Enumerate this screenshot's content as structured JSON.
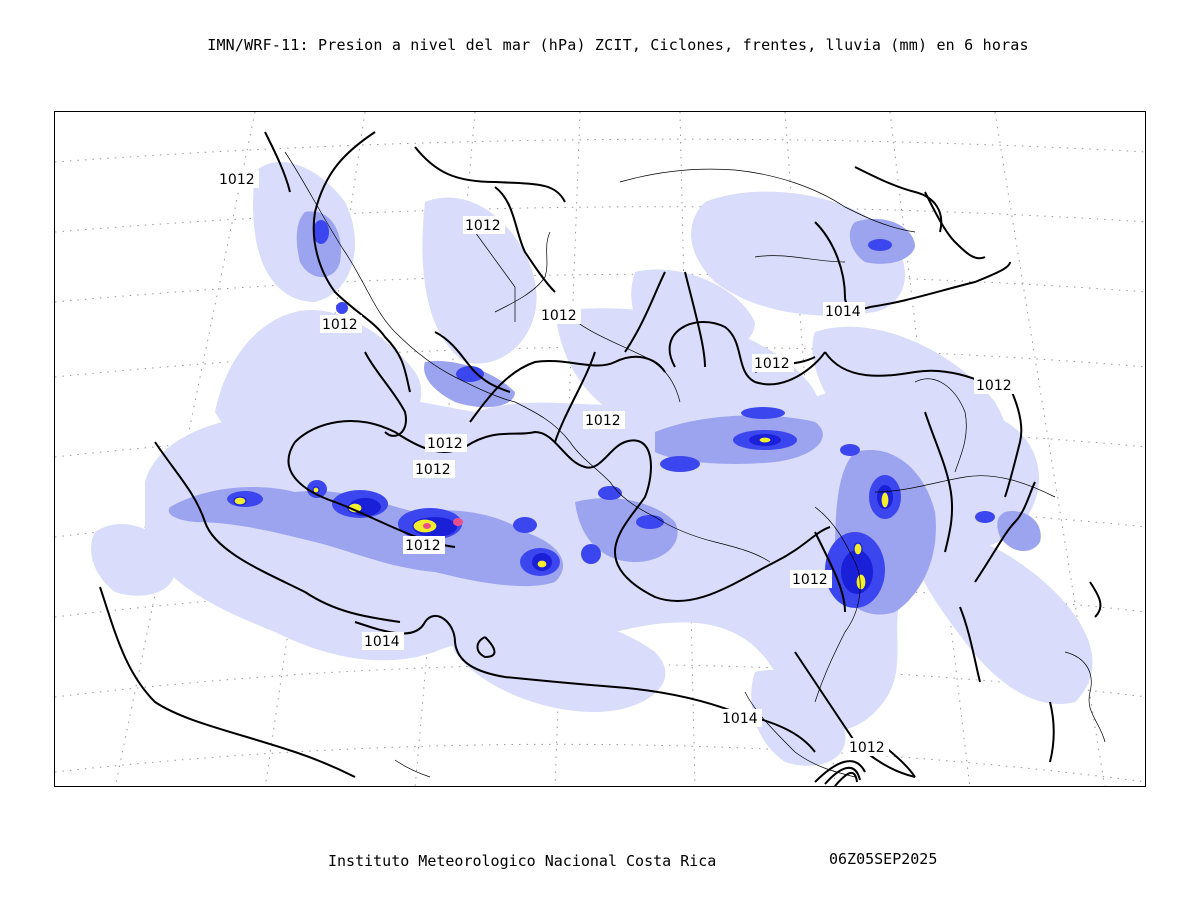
{
  "title": "IMN/WRF-11: Presion a nivel del mar (hPa) ZCIT, Ciclones, frentes, lluvia (mm) en 6 horas",
  "map": {
    "isobar_labels": [
      {
        "text": "1012"
      },
      {
        "text": "1012"
      },
      {
        "text": "1012"
      },
      {
        "text": "1012"
      },
      {
        "text": "1012"
      },
      {
        "text": "1012"
      },
      {
        "text": "1012"
      },
      {
        "text": "1012"
      },
      {
        "text": "1012"
      },
      {
        "text": "1012"
      },
      {
        "text": "1012"
      },
      {
        "text": "1012"
      },
      {
        "text": "1014"
      },
      {
        "text": "1014"
      },
      {
        "text": "1014"
      }
    ],
    "colors": {
      "rain_light": "#d9dcfa",
      "rain_moderate": "#9ca4f0",
      "rain_strong": "#3c46ee",
      "rain_heavy": "#1a1fd8",
      "rain_intense": "#f3ee2b",
      "rain_extreme": "#e8508c",
      "isobar": "#000000",
      "coastline": "#000000"
    }
  },
  "footer": {
    "institution": "Instituto Meteorologico Nacional Costa Rica",
    "valid_time": "06Z05SEP2025"
  }
}
